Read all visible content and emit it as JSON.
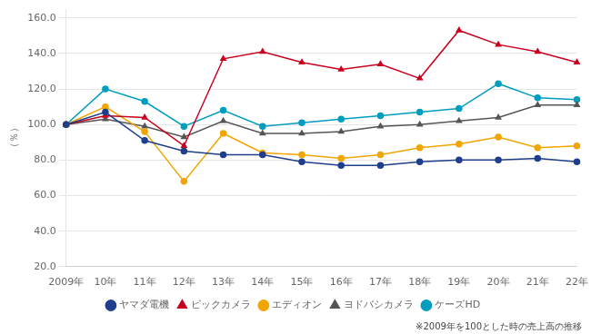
{
  "chart_data": {
    "type": "line",
    "categories": [
      "2009年",
      "10年",
      "11年",
      "12年",
      "13年",
      "14年",
      "15年",
      "16年",
      "17年",
      "18年",
      "19年",
      "20年",
      "21年",
      "22年"
    ],
    "series": [
      {
        "name": "ヤマダ電機",
        "color": "#1F3E8C",
        "marker": "circle",
        "values": [
          100.0,
          107.0,
          91.0,
          85.0,
          83.0,
          83.0,
          79.0,
          77.0,
          77.0,
          79.0,
          80.0,
          80.0,
          81.0,
          79.0
        ]
      },
      {
        "name": "ビックカメラ",
        "color": "#C8001E",
        "marker": "triangle",
        "values": [
          100.0,
          105.0,
          104.0,
          88.0,
          137.0,
          141.0,
          135.0,
          131.0,
          134.0,
          126.0,
          153.0,
          145.0,
          141.0,
          135.0
        ]
      },
      {
        "name": "エディオン",
        "color": "#F0A500",
        "marker": "circle",
        "values": [
          100.0,
          110.0,
          96.0,
          68.0,
          95.0,
          84.0,
          83.0,
          81.0,
          83.0,
          87.0,
          89.0,
          93.0,
          87.0,
          88.0
        ]
      },
      {
        "name": "ヨドバシカメラ",
        "color": "#555555",
        "marker": "triangle",
        "values": [
          100.0,
          103.0,
          99.0,
          93.0,
          102.0,
          95.0,
          95.0,
          96.0,
          99.0,
          100.0,
          102.0,
          104.0,
          111.0,
          111.0
        ]
      },
      {
        "name": "ケーズHD",
        "color": "#009DBF",
        "marker": "circle",
        "values": [
          100.0,
          120.0,
          113.0,
          99.0,
          108.0,
          99.0,
          101.0,
          103.0,
          105.0,
          107.0,
          109.0,
          123.0,
          115.0,
          114.0
        ]
      }
    ],
    "ylabel": "（％）",
    "ylim": [
      20.0,
      165.0
    ],
    "yticks": [
      {
        "value": 20,
        "label": "20.0"
      },
      {
        "value": 40,
        "label": "40.0"
      },
      {
        "value": 60,
        "label": "60.0"
      },
      {
        "value": 80,
        "label": "80.0"
      },
      {
        "value": 100,
        "label": "100.0"
      },
      {
        "value": 120,
        "label": "120.0"
      },
      {
        "value": 140,
        "label": "140.0"
      },
      {
        "value": 160,
        "label": "160.0"
      }
    ],
    "grid": true,
    "legend": "bottom",
    "annotations": [
      "※2009年を100とした時の売上高の推移"
    ]
  }
}
